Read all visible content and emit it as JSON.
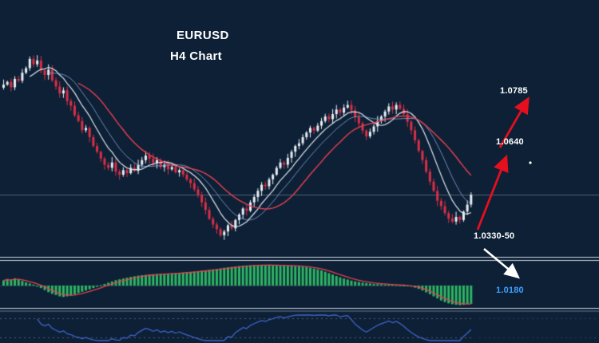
{
  "header": {
    "symbol": "EURUSD",
    "timeframe": "H4 Chart"
  },
  "annotations": {
    "target_upper": "1.0785",
    "target_mid": "1.0640",
    "support_zone": "1.0330-50",
    "target_lower": "1.0180"
  },
  "colors": {
    "background": "#0d2036",
    "bull_candle": "#e9eef3",
    "bear_candle": "#d92f45",
    "ma_fast": "#dfe7ee",
    "ma_slow": "#e8404f",
    "ma_mid": "#86a8d8",
    "histogram": "#2db563",
    "signal_line": "#e8404f",
    "oscillator_line": "#4064c8",
    "grid_line": "#8795a5",
    "separator": "#cdd6df",
    "dotted_level": "#4d5d72",
    "arrow_red": "#e50f1e",
    "arrow_white": "#ffffff",
    "label_blue": "#3da1ff"
  },
  "chart_data": {
    "type": "candlestick",
    "title": "EURUSD H4 Chart",
    "price_min": 1.0285,
    "price_max": 1.0805,
    "visible_bars": 126,
    "price_levels_labeled": [
      1.0785,
      1.064,
      1.033,
      1.018
    ],
    "closes": [
      1.0705,
      1.0712,
      1.0698,
      1.072,
      1.0715,
      1.0736,
      1.0748,
      1.0772,
      1.0758,
      1.0768,
      1.0742,
      1.073,
      1.0744,
      1.0716,
      1.07,
      1.0682,
      1.069,
      1.0662,
      1.065,
      1.0625,
      1.061,
      1.0586,
      1.0592,
      1.0568,
      1.0545,
      1.053,
      1.0512,
      1.0496,
      1.0488,
      1.0502,
      1.0478,
      1.047,
      1.0482,
      1.0474,
      1.0488,
      1.048,
      1.0496,
      1.0508,
      1.052,
      1.0512,
      1.05,
      1.0508,
      1.049,
      1.0496,
      1.0484,
      1.049,
      1.0476,
      1.0482,
      1.047,
      1.0458,
      1.0448,
      1.0432,
      1.0418,
      1.0398,
      1.0378,
      1.0355,
      1.034,
      1.0328,
      1.0312,
      1.0322,
      1.0338,
      1.033,
      1.0352,
      1.0366,
      1.0382,
      1.0376,
      1.0398,
      1.0412,
      1.0428,
      1.0444,
      1.044,
      1.0458,
      1.047,
      1.0488,
      1.0502,
      1.0496,
      1.0514,
      1.053,
      1.0545,
      1.0552,
      1.0568,
      1.058,
      1.0592,
      1.0585,
      1.0598,
      1.061,
      1.0622,
      1.0615,
      1.0628,
      1.064,
      1.0632,
      1.0645,
      1.0652,
      1.0638,
      1.062,
      1.0604,
      1.0585,
      1.057,
      1.0582,
      1.0596,
      1.061,
      1.0622,
      1.0635,
      1.0648,
      1.064,
      1.0652,
      1.0642,
      1.0628,
      1.0608,
      1.0586,
      1.056,
      1.0532,
      1.0508,
      1.0478,
      1.0452,
      1.0428,
      1.0402,
      1.0388,
      1.037,
      1.0356,
      1.0348,
      1.036,
      1.0352,
      1.0374,
      1.0392,
      1.0418
    ],
    "macd_histogram": [
      0.25,
      0.32,
      0.28,
      0.35,
      0.3,
      0.22,
      0.15,
      0.1,
      0.05,
      -0.05,
      -0.12,
      -0.22,
      -0.32,
      -0.4,
      -0.46,
      -0.52,
      -0.55,
      -0.52,
      -0.48,
      -0.42,
      -0.36,
      -0.3,
      -0.24,
      -0.18,
      -0.12,
      -0.06,
      0.02,
      0.08,
      0.14,
      0.2,
      0.26,
      0.3,
      0.34,
      0.38,
      0.42,
      0.45,
      0.48,
      0.5,
      0.52,
      0.54,
      0.55,
      0.56,
      0.57,
      0.58,
      0.58,
      0.59,
      0.6,
      0.62,
      0.63,
      0.65,
      0.66,
      0.68,
      0.7,
      0.72,
      0.74,
      0.76,
      0.78,
      0.8,
      0.83,
      0.86,
      0.88,
      0.9,
      0.92,
      0.94,
      0.96,
      0.97,
      0.98,
      0.99,
      1.0,
      1.0,
      1.0,
      0.99,
      0.98,
      0.98,
      0.97,
      0.96,
      0.96,
      0.95,
      0.94,
      0.93,
      0.91,
      0.89,
      0.86,
      0.82,
      0.78,
      0.73,
      0.67,
      0.6,
      0.53,
      0.46,
      0.4,
      0.34,
      0.29,
      0.24,
      0.2,
      0.17,
      0.14,
      0.12,
      0.1,
      0.08,
      0.07,
      0.06,
      0.05,
      0.04,
      0.03,
      0.02,
      0.01,
      0.0,
      -0.02,
      -0.05,
      -0.1,
      -0.16,
      -0.24,
      -0.33,
      -0.42,
      -0.52,
      -0.62,
      -0.72,
      -0.8,
      -0.86,
      -0.9,
      -0.93,
      -0.95,
      -0.93,
      -0.9,
      -0.88
    ],
    "overlays": [
      "fast moving average (white)",
      "mid moving average (blue)",
      "slow moving average (red)"
    ],
    "panels": [
      "MACD-style green histogram with red signal line",
      "blue oscillator line with dotted levels"
    ],
    "oscillator_period": 9
  }
}
